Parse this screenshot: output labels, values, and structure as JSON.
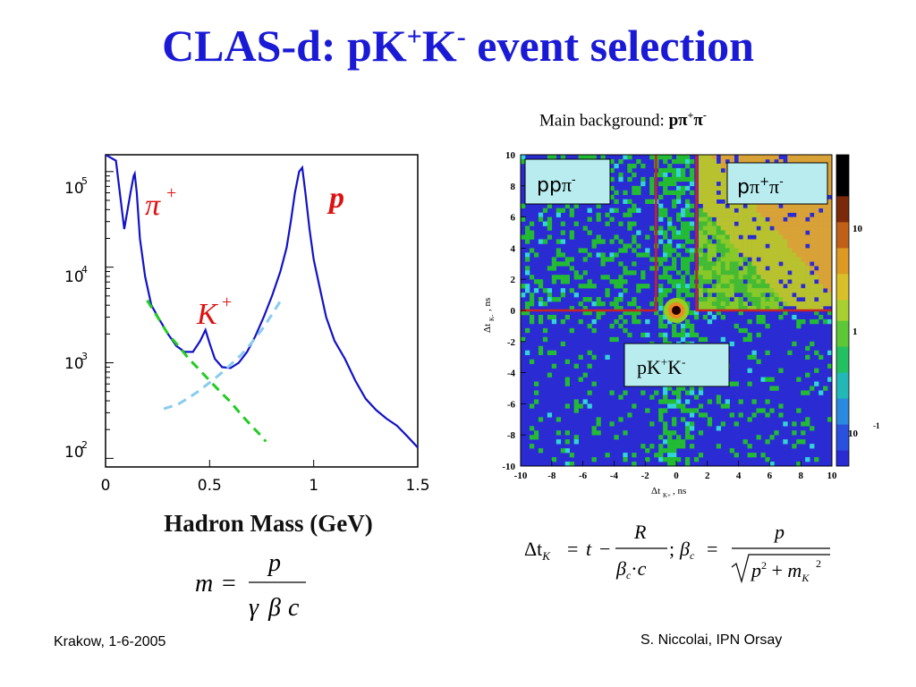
{
  "slide": {
    "title_main": "CLAS-d: pK",
    "title_sup1": "+",
    "title_k": "K",
    "title_sup2": "-",
    "title_tail": " event selection",
    "footer_left": "Krakow, 1-6-2005",
    "footer_right": "S. Niccolai, IPN Orsay",
    "bg_caption_prefix": "Main background: ",
    "bg_caption_bold": "pπ",
    "bg_caption_sup": "+",
    "bg_caption_tail": "π",
    "bg_caption_sup2": "-"
  },
  "chart_data": [
    {
      "type": "line",
      "xlabel": "Hadron Mass (GeV)",
      "ylabel": "",
      "xlim": [
        0,
        1.5
      ],
      "ylim": [
        100,
        150000
      ],
      "log_y": true,
      "x_ticks": [
        "0",
        "0.5",
        "1",
        "1.5"
      ],
      "y_ticks": [
        {
          "base": "10",
          "exp": "5"
        },
        {
          "base": "10",
          "exp": "4"
        },
        {
          "base": "10",
          "exp": "3"
        },
        {
          "base": "10",
          "exp": "2"
        }
      ],
      "series": [
        {
          "name": "data",
          "color": "#1212c8",
          "x": [
            0.0,
            0.05,
            0.09,
            0.12,
            0.135,
            0.14,
            0.15,
            0.165,
            0.19,
            0.22,
            0.26,
            0.3,
            0.34,
            0.38,
            0.42,
            0.455,
            0.48,
            0.5,
            0.525,
            0.56,
            0.6,
            0.64,
            0.68,
            0.72,
            0.76,
            0.8,
            0.84,
            0.87,
            0.89,
            0.91,
            0.93,
            0.945,
            0.96,
            0.98,
            1.0,
            1.03,
            1.06,
            1.1,
            1.15,
            1.2,
            1.25,
            1.3,
            1.35,
            1.4,
            1.45,
            1.5
          ],
          "y": [
            150000,
            130000,
            25000,
            60000,
            90000,
            95000,
            60000,
            20000,
            8000,
            4000,
            2800,
            2000,
            1500,
            1300,
            1300,
            1700,
            2200,
            1600,
            1100,
            900,
            880,
            1000,
            1300,
            1900,
            3000,
            5000,
            9000,
            16000,
            30000,
            60000,
            100000,
            110000,
            60000,
            25000,
            12000,
            6000,
            3000,
            1700,
            1100,
            650,
            420,
            320,
            260,
            220,
            170,
            130
          ]
        },
        {
          "name": "K+ background (green)",
          "color": "#22cc22",
          "dashed": true,
          "x": [
            0.2,
            0.25,
            0.3,
            0.35,
            0.4,
            0.45,
            0.5,
            0.55,
            0.6,
            0.65,
            0.7,
            0.75,
            0.77
          ],
          "y": [
            4500,
            3000,
            2000,
            1500,
            1100,
            850,
            650,
            500,
            390,
            290,
            220,
            170,
            150
          ]
        },
        {
          "name": "p background (light blue)",
          "color": "#88ccee",
          "dashed": true,
          "x": [
            0.28,
            0.35,
            0.4,
            0.45,
            0.5,
            0.55,
            0.6,
            0.65,
            0.7,
            0.75,
            0.8,
            0.85
          ],
          "y": [
            330,
            370,
            430,
            510,
            620,
            760,
            950,
            1200,
            1600,
            2200,
            3200,
            4800
          ]
        }
      ],
      "annotations": [
        {
          "text": "π",
          "sup": "+",
          "color": "#dd1111"
        },
        {
          "text": "K",
          "sup": "+",
          "color": "#dd1111"
        },
        {
          "text": "p",
          "sup": "",
          "color": "#dd1111"
        }
      ]
    },
    {
      "type": "heatmap",
      "xlabel_main": "Δt",
      "xlabel_sub": "K+",
      "xlabel_unit": ", ns",
      "ylabel_main": "Δt",
      "ylabel_sub": "K-",
      "ylabel_unit": ", ns",
      "xlim": [
        -10,
        10
      ],
      "ylim": [
        -10,
        10
      ],
      "x_ticks": [
        "-10",
        "-8",
        "-6",
        "-4",
        "-2",
        "0",
        "2",
        "4",
        "6",
        "8",
        "10"
      ],
      "y_ticks": [
        "10",
        "8",
        "6",
        "4",
        "2",
        "0",
        "-2",
        "-4",
        "-6",
        "-8",
        "-10"
      ],
      "cut_lines": {
        "color": "#cc2222",
        "horizontal_y": 0,
        "left_vertical_x": -1.3,
        "right_vertical_x": 1.3
      },
      "colorbar_ticks": [
        {
          "label": "10",
          "sup": ""
        },
        {
          "label": "1",
          "sup": ""
        },
        {
          "label": "10",
          "sup": "-1"
        }
      ],
      "region_labels": [
        {
          "main": "pp",
          "sym": "π",
          "sup": "-"
        },
        {
          "main": "p",
          "sym": "π",
          "sup": "+",
          "sym2": "π",
          "sup2": "-"
        },
        {
          "main": "pK",
          "sup": "+",
          "main2": "K",
          "sup2": "-"
        }
      ]
    }
  ],
  "formulas": {
    "mass": {
      "lhs": "m",
      "num": "p",
      "den1": "γ",
      "den2": "β",
      "den3": "c"
    },
    "dt": {
      "lhs": "Δt",
      "sub": "K",
      "t": "t",
      "R": "R",
      "beta": "β",
      "c_sub": "c",
      "dot": "·",
      "c": "c",
      "semi": ";",
      "num": "p",
      "p2": "p",
      "exp": "2",
      "m": "m",
      "msub": "K",
      "m_exp": "2"
    }
  },
  "colors": {
    "title": "#1a1ad6",
    "heat_bg": "#2b2bd4",
    "cut": "#cc2222"
  }
}
